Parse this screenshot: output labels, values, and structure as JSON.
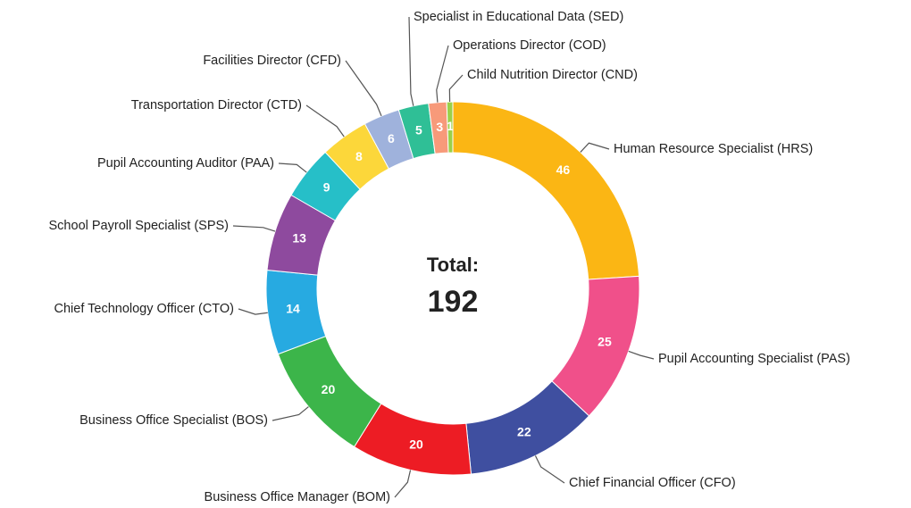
{
  "chart_data": {
    "type": "donut",
    "categories": [
      "Human Resource Specialist (HRS)",
      "Pupil Accounting Specialist (PAS)",
      "Chief Financial Officer (CFO)",
      "Business Office Manager (BOM)",
      "Business Office Specialist (BOS)",
      "Chief Technology Officer (CTO)",
      "School Payroll Specialist (SPS)",
      "Pupil Accounting Auditor (PAA)",
      "Transportation Director (CTD)",
      "Facilities Director (CFD)",
      "Specialist in Educational Data (SED)",
      "Operations Director (COD)",
      "Child Nutrition Director (CND)"
    ],
    "values": [
      46,
      25,
      22,
      20,
      20,
      14,
      13,
      9,
      8,
      6,
      5,
      3,
      1
    ],
    "colors": [
      "#fbb614",
      "#f0508a",
      "#3f4fa0",
      "#ed1c24",
      "#3cb54a",
      "#27aae1",
      "#8e4a9e",
      "#26bfc8",
      "#fcd73a",
      "#9fb2dc",
      "#2fbf96",
      "#f79a7a",
      "#9bd04a"
    ],
    "center_label": "Total:",
    "total": 192
  }
}
